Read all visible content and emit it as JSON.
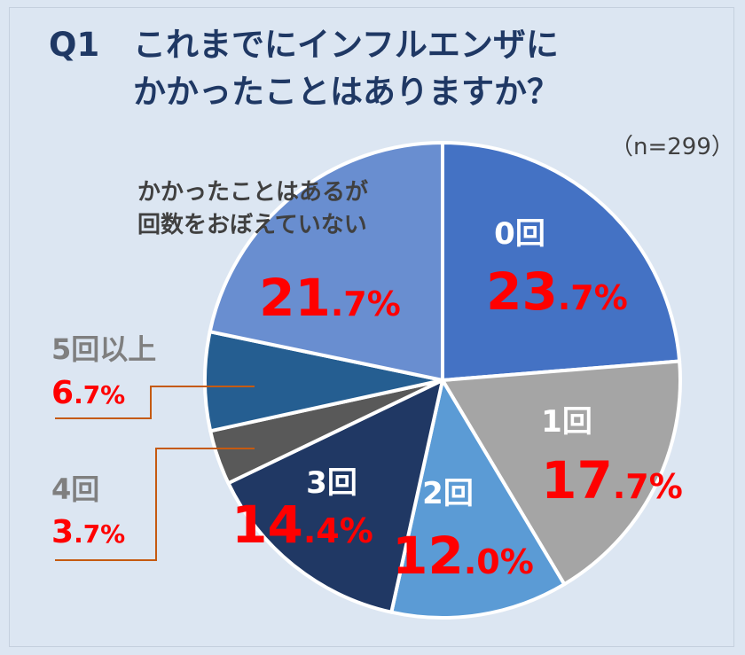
{
  "title": {
    "question_no": "Q1",
    "line1": "これまでにインフルエンザに",
    "line2": "かかったことはありますか？"
  },
  "sample_size": "（n=299）",
  "colors": {
    "background": "#dce6f2",
    "title": "#1f3864",
    "percent": "#ff0000",
    "leader": "#c55a11"
  },
  "chart_data": {
    "type": "pie",
    "title": "Q1 これまでにインフルエンザにかかったことはありますか？",
    "n": 299,
    "start": "12 o'clock, clockwise",
    "slices": [
      {
        "name": "0回",
        "label_lines": [
          "0回"
        ],
        "value": 23.7,
        "int": "23",
        "dec": "7",
        "unit": "%",
        "color": "#4472c4",
        "label_color": "#ffffff"
      },
      {
        "name": "1回",
        "label_lines": [
          "1回"
        ],
        "value": 17.7,
        "int": "17",
        "dec": "7",
        "unit": "%",
        "color": "#a5a5a5",
        "label_color": "#ffffff"
      },
      {
        "name": "2回",
        "label_lines": [
          "2回"
        ],
        "value": 12.0,
        "int": "12",
        "dec": "0",
        "unit": "%",
        "color": "#5b9bd5",
        "label_color": "#ffffff"
      },
      {
        "name": "3回",
        "label_lines": [
          "3回"
        ],
        "value": 14.4,
        "int": "14",
        "dec": "4",
        "unit": "%",
        "color": "#203864",
        "label_color": "#ffffff"
      },
      {
        "name": "4回",
        "label_lines": [
          "4回"
        ],
        "value": 3.7,
        "int": "3",
        "dec": "7",
        "unit": "%",
        "color": "#595959",
        "label_color": "#7f7f7f"
      },
      {
        "name": "5回以上",
        "label_lines": [
          "5回以上"
        ],
        "value": 6.7,
        "int": "6",
        "dec": "7",
        "unit": "%",
        "color": "#255e91",
        "label_color": "#7f7f7f"
      },
      {
        "name": "かかったことはあるが回数をおぼえていない",
        "label_lines": [
          "かかったことはあるが",
          "回数をおぼえていない"
        ],
        "value": 21.7,
        "int": "21",
        "dec": "7",
        "unit": "%",
        "color": "#698ed0",
        "label_color": "#404040"
      }
    ]
  }
}
